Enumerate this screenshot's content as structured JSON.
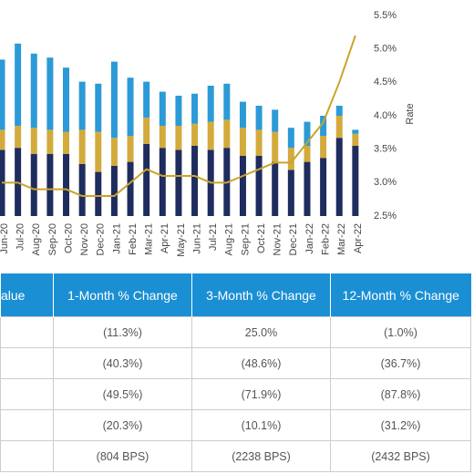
{
  "chart_data": {
    "type": "bar",
    "stacked": true,
    "categories": [
      "Jun-20",
      "Jul-20",
      "Aug-20",
      "Sep-20",
      "Oct-20",
      "Nov-20",
      "Dec-20",
      "Jan-21",
      "Feb-21",
      "Mar-21",
      "Apr-21",
      "May-21",
      "Jun-21",
      "Jul-21",
      "Aug-21",
      "Sep-21",
      "Oct-21",
      "Nov-21",
      "Dec-21",
      "Jan-22",
      "Feb-22",
      "Mar-22",
      "Apr-22"
    ],
    "ylim": [
      0,
      100
    ],
    "y2lim": [
      2.5,
      5.5
    ],
    "y2label": "Rate",
    "y2ticks": [
      {
        "value": 2.5,
        "label": "2.5%"
      },
      {
        "value": 3.0,
        "label": "3.0%"
      },
      {
        "value": 3.5,
        "label": "3.5%"
      },
      {
        "value": 4.0,
        "label": "4.0%"
      },
      {
        "value": 4.5,
        "label": "4.5%"
      },
      {
        "value": 5.0,
        "label": "5.0%"
      },
      {
        "value": 5.5,
        "label": "5.5%"
      }
    ],
    "series": [
      {
        "color": "#1f2c5e",
        "values": [
          33,
          34,
          31,
          31,
          31,
          26,
          22,
          25,
          27,
          36,
          34,
          33,
          35,
          33,
          34,
          30,
          30,
          27,
          23,
          27,
          29,
          39,
          35
        ]
      },
      {
        "color": "#d3aa3c",
        "values": [
          10,
          11,
          13,
          12,
          11,
          17,
          20,
          14,
          13,
          13,
          11,
          12,
          11,
          14,
          14,
          14,
          13,
          15,
          11,
          8,
          11,
          11,
          6
        ]
      },
      {
        "color": "#2b9ad7",
        "values": [
          35,
          41,
          37,
          36,
          32,
          24,
          24,
          38,
          29,
          18,
          17,
          15,
          15,
          18,
          18,
          13,
          12,
          11,
          10,
          12,
          10,
          5,
          2
        ]
      },
      {
        "type": "line",
        "axis": "y2",
        "color": "#c9a52a",
        "values": [
          3.0,
          3.0,
          2.9,
          2.9,
          2.9,
          2.8,
          2.8,
          2.8,
          3.0,
          3.2,
          3.1,
          3.1,
          3.1,
          3.0,
          3.0,
          3.1,
          3.2,
          3.3,
          3.3,
          3.6,
          3.9,
          4.5,
          5.2
        ]
      }
    ]
  },
  "table": {
    "header": [
      "alue",
      "1-Month % Change",
      "3-Month % Change",
      "12-Month % Change"
    ],
    "rows": [
      [
        "(11.3%)",
        "25.0%",
        "(1.0%)"
      ],
      [
        "(40.3%)",
        "(48.6%)",
        "(36.7%)"
      ],
      [
        "(49.5%)",
        "(71.9%)",
        "(87.8%)"
      ],
      [
        "(20.3%)",
        "(10.1%)",
        "(31.2%)"
      ],
      [
        "(804 BPS)",
        "(2238 BPS)",
        "(2432 BPS)"
      ]
    ]
  }
}
